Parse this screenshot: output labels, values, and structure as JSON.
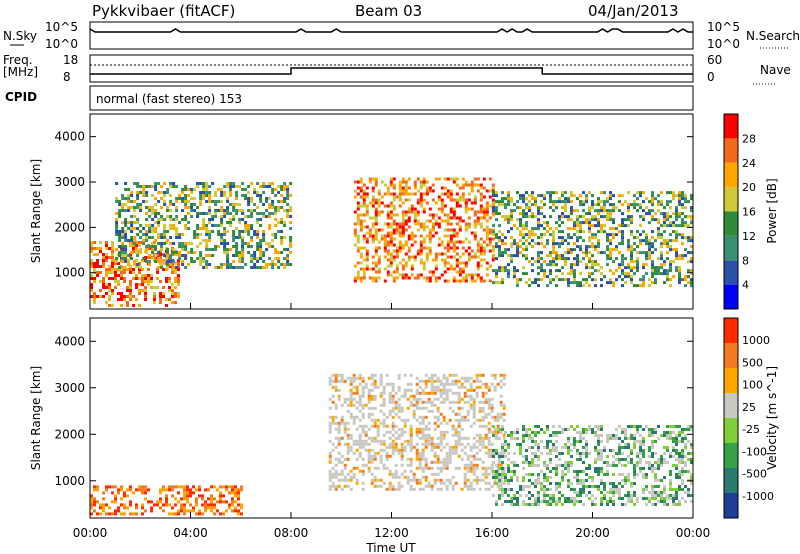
{
  "header": {
    "radar": "Pykkvibaer (fitACF)",
    "beam": "Beam 03",
    "date": "04/Jan/2013"
  },
  "panels": {
    "nsky": {
      "left_label": "N.Sky",
      "left_ticks": [
        "10^5",
        "10^0"
      ],
      "right_ticks": [
        "10^5",
        "10^0"
      ],
      "right_label": "N.Search"
    },
    "freq": {
      "left_label_line1": "Freq.",
      "left_label_line2": "[MHz]",
      "left_ticks": [
        "18",
        "8"
      ],
      "right_ticks": [
        "60",
        "0"
      ],
      "right_label": "Nave"
    },
    "cpid": {
      "left_label": "CPID",
      "text": "normal (fast stereo) 153"
    }
  },
  "chart_data": [
    {
      "type": "heatmap",
      "title": "",
      "ylabel": "Slant Range [km]",
      "xlabel": "",
      "yticks": [
        "1000",
        "2000",
        "3000",
        "4000"
      ],
      "ylim": [
        200,
        4500
      ],
      "xticks": [
        "00:00",
        "04:00",
        "08:00",
        "12:00",
        "16:00",
        "20:00",
        "00:00"
      ],
      "colorbar": {
        "label": "Power [dB]",
        "ticks": [
          "4",
          "8",
          "12",
          "16",
          "20",
          "24",
          "28"
        ],
        "colors": [
          "#0000ff",
          "#2b50a8",
          "#3a8f72",
          "#2f8b3a",
          "#cfc838",
          "#ffa500",
          "#f26a1a",
          "#ff0000"
        ]
      },
      "regions": [
        {
          "t0": 0.0,
          "t1": 3.5,
          "r0": 300,
          "r1": 1700,
          "level": "high"
        },
        {
          "t0": 1.0,
          "t1": 8.0,
          "r0": 1100,
          "r1": 3000,
          "level": "medium"
        },
        {
          "t0": 10.5,
          "t1": 16.0,
          "r0": 800,
          "r1": 3100,
          "level": "high"
        },
        {
          "t0": 16.0,
          "t1": 24.0,
          "r0": 700,
          "r1": 2800,
          "level": "medium"
        }
      ]
    },
    {
      "type": "heatmap",
      "title": "",
      "ylabel": "Slant Range [km]",
      "xlabel": "Time UT",
      "yticks": [
        "1000",
        "2000",
        "3000",
        "4000"
      ],
      "ylim": [
        200,
        4500
      ],
      "xticks": [
        "00:00",
        "04:00",
        "08:00",
        "12:00",
        "16:00",
        "20:00",
        "00:00"
      ],
      "colorbar": {
        "label": "Velocity [m s^-1]",
        "ticks": [
          "1000",
          "500",
          "100",
          "25",
          "-25",
          "-100",
          "-500",
          "-1000"
        ],
        "colors": [
          "#1d3f9a",
          "#2a7a70",
          "#35a045",
          "#7fcf3a",
          "#c8c8c0",
          "#ffa500",
          "#f47a1e",
          "#ff2a00"
        ]
      },
      "regions": [
        {
          "t0": 0.0,
          "t1": 6.0,
          "r0": 300,
          "r1": 900,
          "level": "away"
        },
        {
          "t0": 9.5,
          "t1": 16.5,
          "r0": 800,
          "r1": 3300,
          "level": "zero"
        },
        {
          "t0": 16.0,
          "t1": 24.0,
          "r0": 500,
          "r1": 2200,
          "level": "toward"
        }
      ]
    }
  ]
}
